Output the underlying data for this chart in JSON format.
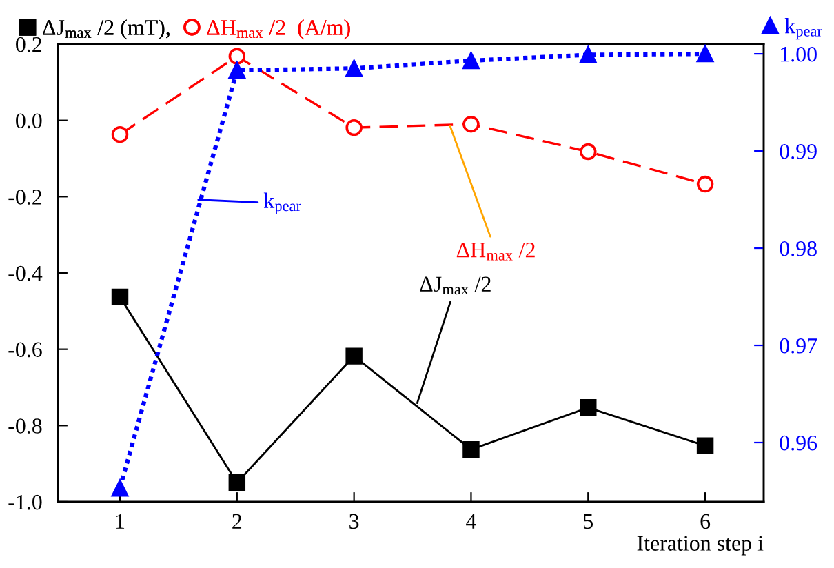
{
  "chart_data": {
    "type": "line",
    "xlabel": "Iteration step i",
    "x": [
      1,
      2,
      3,
      4,
      5,
      6
    ],
    "series": [
      {
        "name": "ΔJ$_{max}$ /2 (mT),",
        "color": "#000000",
        "marker": "square",
        "line_style": "solid",
        "values": [
          -0.463,
          -0.95,
          -0.618,
          -0.863,
          -0.753,
          -0.853
        ]
      },
      {
        "name": "ΔH$_{max}$ /2  (A/m)",
        "color": "#ff0000",
        "marker": "circle",
        "line_style": "dashed",
        "values": [
          -0.037,
          0.168,
          -0.019,
          -0.01,
          -0.082,
          -0.167
        ]
      },
      {
        "name": "k$_{pear}$",
        "color": "#0000ff",
        "marker": "triangle",
        "line_style": "dotted",
        "axis": "y2",
        "values": [
          0.9553,
          0.9983,
          0.9985,
          0.9993,
          0.9999,
          1.0
        ]
      }
    ],
    "xlim": [
      0.47,
      6.5
    ],
    "xticks": [
      1,
      2,
      3,
      4,
      5,
      6
    ],
    "ylim": [
      -1.0,
      0.2
    ],
    "yticks": [
      {
        "value": -1.0,
        "label": "-1.0"
      },
      {
        "value": -0.8,
        "label": "-0.8"
      },
      {
        "value": -0.6,
        "label": "-0.6"
      },
      {
        "value": -0.4,
        "label": "-0.4"
      },
      {
        "value": -0.2,
        "label": "-0.2"
      },
      {
        "value": 0.0,
        "label": "0.0"
      },
      {
        "value": 0.2,
        "label": "0.2"
      }
    ],
    "y2lim": [
      0.9539,
      1.001
    ],
    "y2ticks": [
      0.96,
      0.97,
      0.98,
      0.99,
      {
        "value": 1.0,
        "label": "1.00"
      }
    ],
    "annotations": [
      {
        "text": "k$_{pear}$",
        "x": 1.67,
        "y": -0.208
      },
      {
        "text": "ΔH$_{max}$ /2",
        "x": 3.82,
        "y": -0.014
      },
      {
        "text": "ΔJ$_{max}$ /2",
        "x": 3.54,
        "y": -0.741
      }
    ],
    "legend": "top",
    "grid": false
  }
}
